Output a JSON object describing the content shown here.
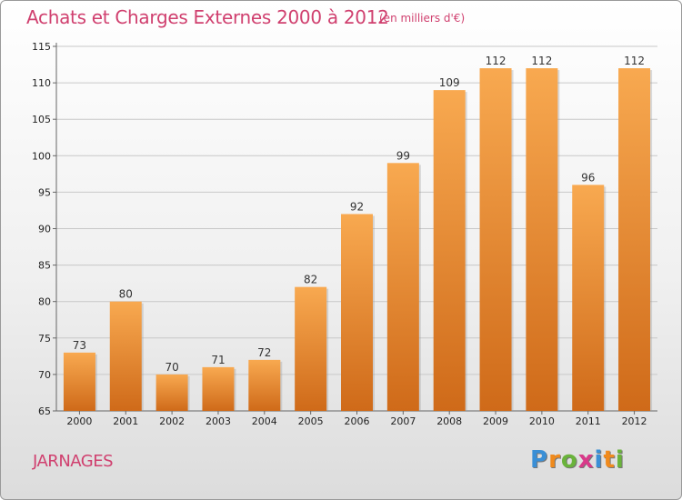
{
  "header": {
    "title": "Achats et Charges Externes 2000 à 2012",
    "unit": "(en milliers d'€)"
  },
  "footer": {
    "commune": "JARNAGES",
    "brand": [
      "P",
      "r",
      "o",
      "x",
      "i",
      "t",
      "i"
    ],
    "brand_colors": [
      "#3a8fd6",
      "#f08a1c",
      "#6ab33b",
      "#d93a8a",
      "#3a8fd6",
      "#f08a1c",
      "#6ab33b"
    ]
  },
  "colors": {
    "bar_light": "#f8a950",
    "bar_dark": "#cf6a19",
    "grid": "#c8c8c8",
    "text_accent": "#d0406f"
  },
  "chart_data": {
    "type": "bar",
    "title": "Achats et Charges Externes 2000 à 2012",
    "subtitle": "(en milliers d'€)",
    "categories": [
      "2000",
      "2001",
      "2002",
      "2003",
      "2004",
      "2005",
      "2006",
      "2007",
      "2008",
      "2009",
      "2010",
      "2011",
      "2012"
    ],
    "values": [
      73,
      80,
      70,
      71,
      72,
      82,
      92,
      99,
      109,
      112,
      112,
      96,
      112
    ],
    "ylim": [
      65,
      115
    ],
    "yticks": [
      65,
      70,
      75,
      80,
      85,
      90,
      95,
      100,
      105,
      110,
      115
    ],
    "grid": true,
    "xlabel": "",
    "ylabel": ""
  }
}
